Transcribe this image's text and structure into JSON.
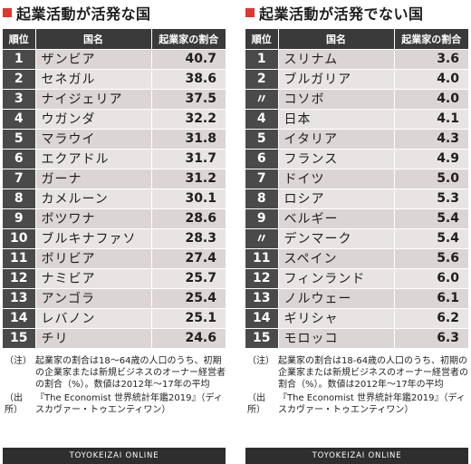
{
  "left": {
    "title": "起業活動が活発な国",
    "headers": {
      "rank": "順位",
      "country": "国名",
      "ratio": "起業家の割合"
    },
    "rows": [
      {
        "rank": "1",
        "country": "ザンビア",
        "value": "40.7"
      },
      {
        "rank": "2",
        "country": "セネガル",
        "value": "38.6"
      },
      {
        "rank": "3",
        "country": "ナイジェリア",
        "value": "37.5"
      },
      {
        "rank": "4",
        "country": "ウガンダ",
        "value": "32.2"
      },
      {
        "rank": "5",
        "country": "マラウイ",
        "value": "31.8"
      },
      {
        "rank": "6",
        "country": "エクアドル",
        "value": "31.7"
      },
      {
        "rank": "7",
        "country": "ガーナ",
        "value": "31.2"
      },
      {
        "rank": "8",
        "country": "カメルーン",
        "value": "30.1"
      },
      {
        "rank": "9",
        "country": "ボツワナ",
        "value": "28.6"
      },
      {
        "rank": "10",
        "country": "ブルキナファソ",
        "value": "28.3"
      },
      {
        "rank": "11",
        "country": "ボリビア",
        "value": "27.4"
      },
      {
        "rank": "12",
        "country": "ナミビア",
        "value": "25.7"
      },
      {
        "rank": "13",
        "country": "アンゴラ",
        "value": "25.4"
      },
      {
        "rank": "14",
        "country": "レバノン",
        "value": "25.1"
      },
      {
        "rank": "15",
        "country": "チリ",
        "value": "24.6"
      }
    ],
    "note_label": "（注）",
    "note": "起業家の割合は18〜64歳の人口のうち、初期の企業家または新規ビジネスのオーナー経営者の割合（%）。数値は2012年〜17年の平均",
    "source_label": "（出所）",
    "source": "『The Economist 世界統計年鑑2019』（ディスカヴァー・トゥエンティワン）",
    "footer": "TOYOKEIZAI ONLINE"
  },
  "right": {
    "title": "起業活動が活発でない国",
    "headers": {
      "rank": "順位",
      "country": "国名",
      "ratio": "起業家の割合"
    },
    "rows": [
      {
        "rank": "1",
        "country": "スリナム",
        "value": "3.6"
      },
      {
        "rank": "2",
        "country": "ブルガリア",
        "value": "4.0"
      },
      {
        "rank": "〃",
        "country": "コソボ",
        "value": "4.0"
      },
      {
        "rank": "4",
        "country": "日本",
        "value": "4.1"
      },
      {
        "rank": "5",
        "country": "イタリア",
        "value": "4.3"
      },
      {
        "rank": "6",
        "country": "フランス",
        "value": "4.9"
      },
      {
        "rank": "7",
        "country": "ドイツ",
        "value": "5.0"
      },
      {
        "rank": "8",
        "country": "ロシア",
        "value": "5.3"
      },
      {
        "rank": "9",
        "country": "ベルギー",
        "value": "5.4"
      },
      {
        "rank": "〃",
        "country": "デンマーク",
        "value": "5.4"
      },
      {
        "rank": "11",
        "country": "スペイン",
        "value": "5.6"
      },
      {
        "rank": "12",
        "country": "フィンランド",
        "value": "6.0"
      },
      {
        "rank": "13",
        "country": "ノルウェー",
        "value": "6.1"
      },
      {
        "rank": "14",
        "country": "ギリシャ",
        "value": "6.2"
      },
      {
        "rank": "15",
        "country": "モロッコ",
        "value": "6.3"
      }
    ],
    "note_label": "（注）",
    "note": "起業家の割合は18-64歳の人口のうち、初期の企業家または新規ビジネスのオーナー経営者の割合（%）。数値は2012年〜17年の平均",
    "source_label": "（出所）",
    "source": "『The Economist 世界統計年鑑2019』（ディスカヴァー・トゥエンティワン）",
    "footer": "TOYOKEIZAI ONLINE"
  },
  "colors": {
    "accent": "#e0362b",
    "header_bg": "#3a3a3a",
    "rank_bg": "#4a4a4a",
    "row_a": "#dcd5d5",
    "row_b": "#e9e4e4"
  }
}
